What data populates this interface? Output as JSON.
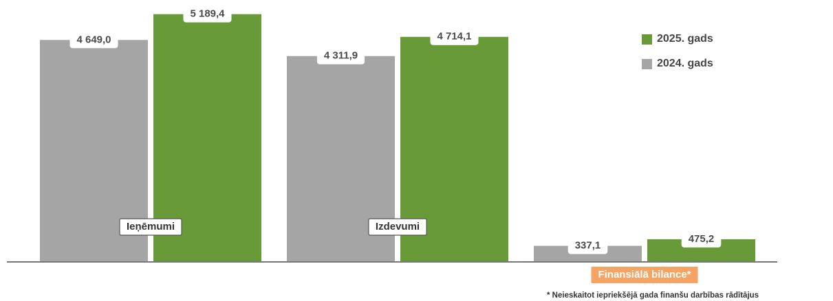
{
  "chart_data": {
    "type": "bar",
    "categories": [
      "Ieņēmumi",
      "Izdevumi",
      "Finansiālā bilance*"
    ],
    "series": [
      {
        "name": "2024. gads",
        "color": "#a5a5a5",
        "values": [
          4649.0,
          4311.9,
          337.1
        ],
        "value_labels": [
          "4 649,0",
          "4 311,9",
          "337,1"
        ]
      },
      {
        "name": "2025. gads",
        "color": "#689a37",
        "values": [
          5189.4,
          4714.1,
          475.2
        ],
        "value_labels": [
          "5 189,4",
          "4 714,1",
          "475,2"
        ]
      }
    ],
    "ylim": [
      0,
      5400
    ],
    "footnote": "* Neieskaitot iepriekšējā gada finanšu darbības rādītājus"
  }
}
